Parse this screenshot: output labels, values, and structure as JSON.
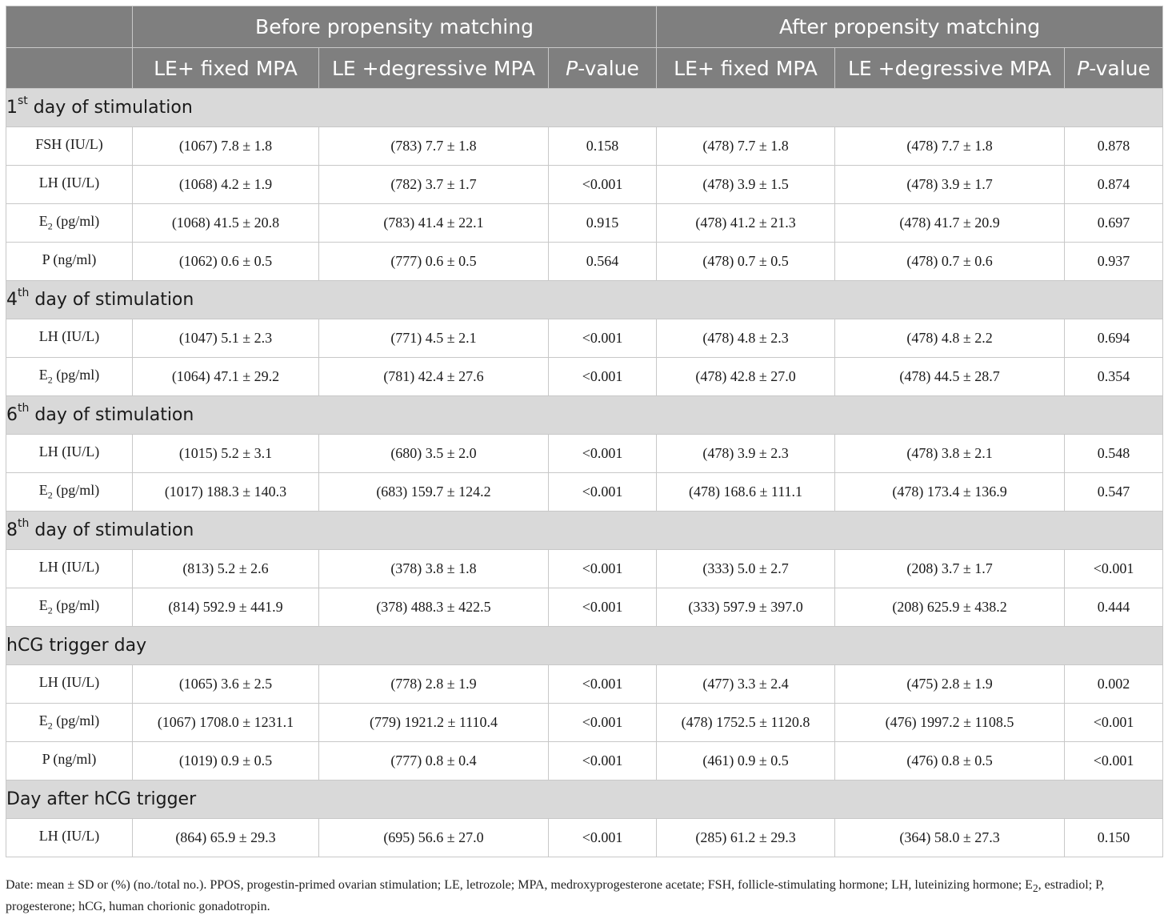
{
  "header": {
    "group_before": "Before propensity matching",
    "group_after": "After propensity matching",
    "col_fixed": "LE+ fixed MPA",
    "col_degressive": "LE +degressive MPA",
    "col_p_italic": "P",
    "col_p_rest": "-value"
  },
  "sections": [
    {
      "title_pre": "1",
      "title_sup": "st",
      "title_post": " day of stimulation",
      "rows": [
        {
          "label": "FSH (IU/L)",
          "label_sub": "",
          "label_rest": "",
          "b_fixed": "(1067) 7.8 ± 1.8",
          "b_deg": "(783) 7.7 ± 1.8",
          "b_p": "0.158",
          "a_fixed": "(478) 7.7 ± 1.8",
          "a_deg": "(478) 7.7 ± 1.8",
          "a_p": "0.878"
        },
        {
          "label": "LH (IU/L)",
          "label_sub": "",
          "label_rest": "",
          "b_fixed": "(1068) 4.2 ± 1.9",
          "b_deg": "(782) 3.7 ± 1.7",
          "b_p": "<0.001",
          "a_fixed": "(478) 3.9 ± 1.5",
          "a_deg": "(478) 3.9 ± 1.7",
          "a_p": "0.874"
        },
        {
          "label": "E",
          "label_sub": "2",
          "label_rest": " (pg/ml)",
          "b_fixed": "(1068) 41.5 ± 20.8",
          "b_deg": "(783) 41.4 ± 22.1",
          "b_p": "0.915",
          "a_fixed": "(478) 41.2 ± 21.3",
          "a_deg": "(478) 41.7 ± 20.9",
          "a_p": "0.697"
        },
        {
          "label": "P (ng/ml)",
          "label_sub": "",
          "label_rest": "",
          "b_fixed": "(1062) 0.6 ± 0.5",
          "b_deg": "(777) 0.6 ± 0.5",
          "b_p": "0.564",
          "a_fixed": "(478) 0.7 ± 0.5",
          "a_deg": "(478) 0.7 ± 0.6",
          "a_p": "0.937"
        }
      ]
    },
    {
      "title_pre": "4",
      "title_sup": "th",
      "title_post": " day of stimulation",
      "rows": [
        {
          "label": "LH (IU/L)",
          "label_sub": "",
          "label_rest": "",
          "b_fixed": "(1047) 5.1 ± 2.3",
          "b_deg": "(771) 4.5 ± 2.1",
          "b_p": "<0.001",
          "a_fixed": "(478) 4.8 ± 2.3",
          "a_deg": "(478) 4.8 ± 2.2",
          "a_p": "0.694"
        },
        {
          "label": "E",
          "label_sub": "2",
          "label_rest": " (pg/ml)",
          "b_fixed": "(1064) 47.1 ± 29.2",
          "b_deg": "(781) 42.4 ± 27.6",
          "b_p": "<0.001",
          "a_fixed": "(478) 42.8 ± 27.0",
          "a_deg": "(478) 44.5 ± 28.7",
          "a_p": "0.354"
        }
      ]
    },
    {
      "title_pre": "6",
      "title_sup": "th",
      "title_post": " day of stimulation",
      "rows": [
        {
          "label": "LH (IU/L)",
          "label_sub": "",
          "label_rest": "",
          "b_fixed": "(1015) 5.2 ± 3.1",
          "b_deg": "(680) 3.5 ± 2.0",
          "b_p": "<0.001",
          "a_fixed": "(478) 3.9 ± 2.3",
          "a_deg": "(478) 3.8 ± 2.1",
          "a_p": "0.548"
        },
        {
          "label": "E",
          "label_sub": "2",
          "label_rest": " (pg/ml)",
          "b_fixed": "(1017) 188.3 ± 140.3",
          "b_deg": "(683) 159.7 ± 124.2",
          "b_p": "<0.001",
          "a_fixed": "(478) 168.6 ± 111.1",
          "a_deg": "(478) 173.4 ± 136.9",
          "a_p": "0.547"
        }
      ]
    },
    {
      "title_pre": "8",
      "title_sup": "th",
      "title_post": " day of stimulation",
      "rows": [
        {
          "label": "LH (IU/L)",
          "label_sub": "",
          "label_rest": "",
          "b_fixed": "(813) 5.2 ± 2.6",
          "b_deg": "(378) 3.8 ± 1.8",
          "b_p": "<0.001",
          "a_fixed": "(333) 5.0 ± 2.7",
          "a_deg": "(208) 3.7 ± 1.7",
          "a_p": "<0.001"
        },
        {
          "label": "E",
          "label_sub": "2",
          "label_rest": " (pg/ml)",
          "b_fixed": "(814) 592.9 ± 441.9",
          "b_deg": "(378) 488.3 ± 422.5",
          "b_p": "<0.001",
          "a_fixed": "(333) 597.9 ± 397.0",
          "a_deg": "(208) 625.9 ± 438.2",
          "a_p": "0.444"
        }
      ]
    },
    {
      "title_pre": "hCG trigger day",
      "title_sup": "",
      "title_post": "",
      "rows": [
        {
          "label": "LH (IU/L)",
          "label_sub": "",
          "label_rest": "",
          "b_fixed": "(1065) 3.6 ± 2.5",
          "b_deg": "(778) 2.8 ± 1.9",
          "b_p": "<0.001",
          "a_fixed": "(477) 3.3 ± 2.4",
          "a_deg": "(475) 2.8 ± 1.9",
          "a_p": "0.002"
        },
        {
          "label": "E",
          "label_sub": "2",
          "label_rest": " (pg/ml)",
          "b_fixed": "(1067) 1708.0 ± 1231.1",
          "b_deg": "(779) 1921.2 ± 1110.4",
          "b_p": "<0.001",
          "a_fixed": "(478) 1752.5 ± 1120.8",
          "a_deg": "(476) 1997.2 ± 1108.5",
          "a_p": "<0.001"
        },
        {
          "label": "P (ng/ml)",
          "label_sub": "",
          "label_rest": "",
          "b_fixed": "(1019) 0.9 ± 0.5",
          "b_deg": "(777) 0.8 ± 0.4",
          "b_p": "<0.001",
          "a_fixed": "(461) 0.9 ± 0.5",
          "a_deg": "(476) 0.8 ± 0.5",
          "a_p": "<0.001"
        }
      ]
    },
    {
      "title_pre": "Day after hCG trigger",
      "title_sup": "",
      "title_post": "",
      "rows": [
        {
          "label": "LH (IU/L)",
          "label_sub": "",
          "label_rest": "",
          "b_fixed": "(864) 65.9 ± 29.3",
          "b_deg": "(695) 56.6 ± 27.0",
          "b_p": "<0.001",
          "a_fixed": "(285) 61.2 ± 29.3",
          "a_deg": "(364) 58.0 ± 27.3",
          "a_p": "0.150"
        }
      ]
    }
  ],
  "footnote": {
    "part1": "Date: mean ± SD or (%) (no./total no.). PPOS, progestin-primed ovarian stimulation; LE, letrozole; MPA, medroxyprogesterone acetate; FSH, follicle-stimulating hormone; LH, luteinizing hormone; E",
    "sub": "2",
    "part2": ", estradiol; P, progesterone; hCG, human chorionic gonadotropin."
  }
}
